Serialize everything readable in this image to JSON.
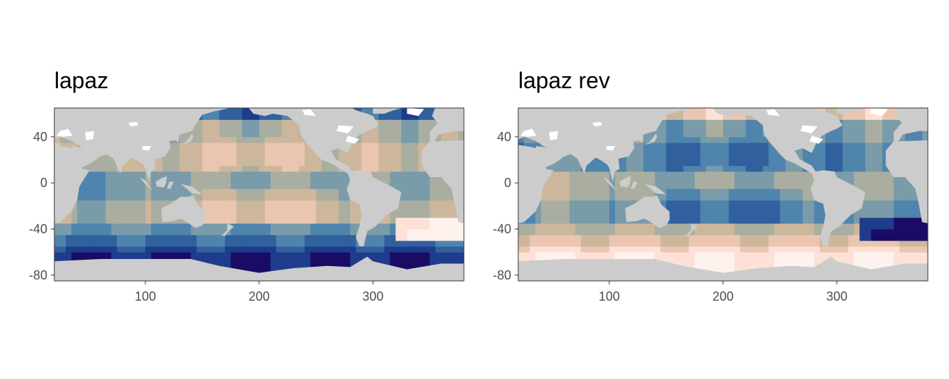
{
  "panels": [
    {
      "title": "lapaz",
      "palette": [
        "#1a0c64",
        "#1f3c8c",
        "#30619e",
        "#4f84ad",
        "#7a9ba9",
        "#a9aea1",
        "#cdb79c",
        "#eac6b1",
        "#fde1d6",
        "#fef2ee"
      ],
      "x_ticks": [
        100,
        200,
        300
      ],
      "y_ticks": [
        40,
        0,
        -40,
        -80
      ],
      "xlim": [
        20,
        380
      ],
      "ylim": [
        -85,
        65
      ]
    },
    {
      "title": "lapaz rev",
      "palette": [
        "#fef2ee",
        "#fde1d6",
        "#eac6b1",
        "#cdb79c",
        "#a9aea1",
        "#7a9ba9",
        "#4f84ad",
        "#30619e",
        "#1f3c8c",
        "#1a0c64"
      ],
      "x_ticks": [
        100,
        200,
        300
      ],
      "y_ticks": [
        40,
        0,
        -40,
        -80
      ],
      "xlim": [
        20,
        380
      ],
      "ylim": [
        -85,
        65
      ]
    }
  ],
  "colors": {
    "land": "#cccccc",
    "missing": "#ffffff",
    "frame": "#333333"
  }
}
